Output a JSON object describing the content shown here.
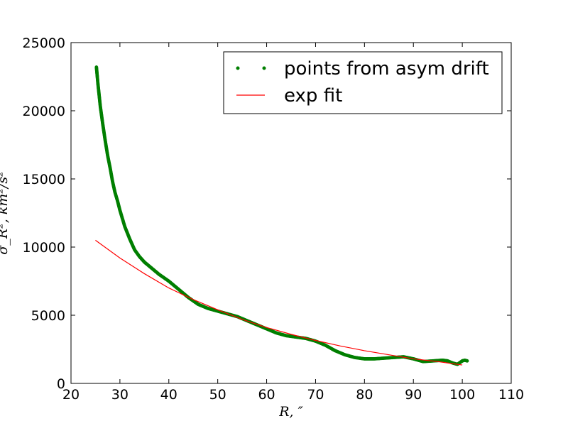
{
  "chart_data": {
    "type": "scatter",
    "title": "",
    "xlabel": "R, ″",
    "ylabel": "σ_R², km²/s²",
    "xlim": [
      20,
      110
    ],
    "ylim": [
      0,
      25000
    ],
    "xticks": [
      20,
      30,
      40,
      50,
      60,
      70,
      80,
      90,
      100,
      110
    ],
    "yticks": [
      0,
      5000,
      10000,
      15000,
      20000,
      25000
    ],
    "xtick_labels": [
      "20",
      "30",
      "40",
      "50",
      "60",
      "70",
      "80",
      "90",
      "100",
      "110"
    ],
    "ytick_labels": [
      "0",
      "5000",
      "10000",
      "15000",
      "20000",
      "25000"
    ],
    "grid": false,
    "legend": "top-right",
    "colors": {
      "points": "#007f00",
      "fit": "#ff0000"
    },
    "series": [
      {
        "name": "points from asym drift",
        "kind": "points",
        "x": [
          25.2,
          25.5,
          26,
          26.5,
          27,
          27.5,
          28,
          28.5,
          29,
          29.5,
          30,
          31,
          32,
          33,
          34,
          35,
          36,
          37,
          38,
          39,
          40,
          42,
          44,
          46,
          48,
          50,
          52,
          54,
          56,
          58,
          60,
          62,
          64,
          66,
          68,
          70,
          72,
          74,
          76,
          78,
          80,
          82,
          84,
          86,
          88,
          90,
          92,
          94,
          96,
          97,
          98,
          99,
          100,
          100.5,
          101
        ],
        "y": [
          23200,
          22000,
          20300,
          19000,
          17800,
          16700,
          15800,
          14800,
          14000,
          13400,
          12700,
          11500,
          10600,
          9800,
          9300,
          8900,
          8600,
          8300,
          8000,
          7750,
          7500,
          6900,
          6300,
          5800,
          5500,
          5300,
          5100,
          4900,
          4600,
          4300,
          4000,
          3700,
          3500,
          3400,
          3300,
          3100,
          2800,
          2400,
          2100,
          1900,
          1800,
          1800,
          1850,
          1900,
          1950,
          1800,
          1600,
          1650,
          1700,
          1650,
          1500,
          1400,
          1650,
          1700,
          1650
        ]
      },
      {
        "name": "exp fit",
        "kind": "line",
        "x": [
          25,
          30,
          35,
          40,
          45,
          50,
          55,
          60,
          65,
          70,
          75,
          80,
          85,
          90,
          95,
          100
        ],
        "y": [
          10500,
          9200,
          8050,
          7000,
          6150,
          5400,
          4700,
          4100,
          3600,
          3150,
          2750,
          2400,
          2100,
          1800,
          1600,
          1350
        ]
      }
    ]
  }
}
